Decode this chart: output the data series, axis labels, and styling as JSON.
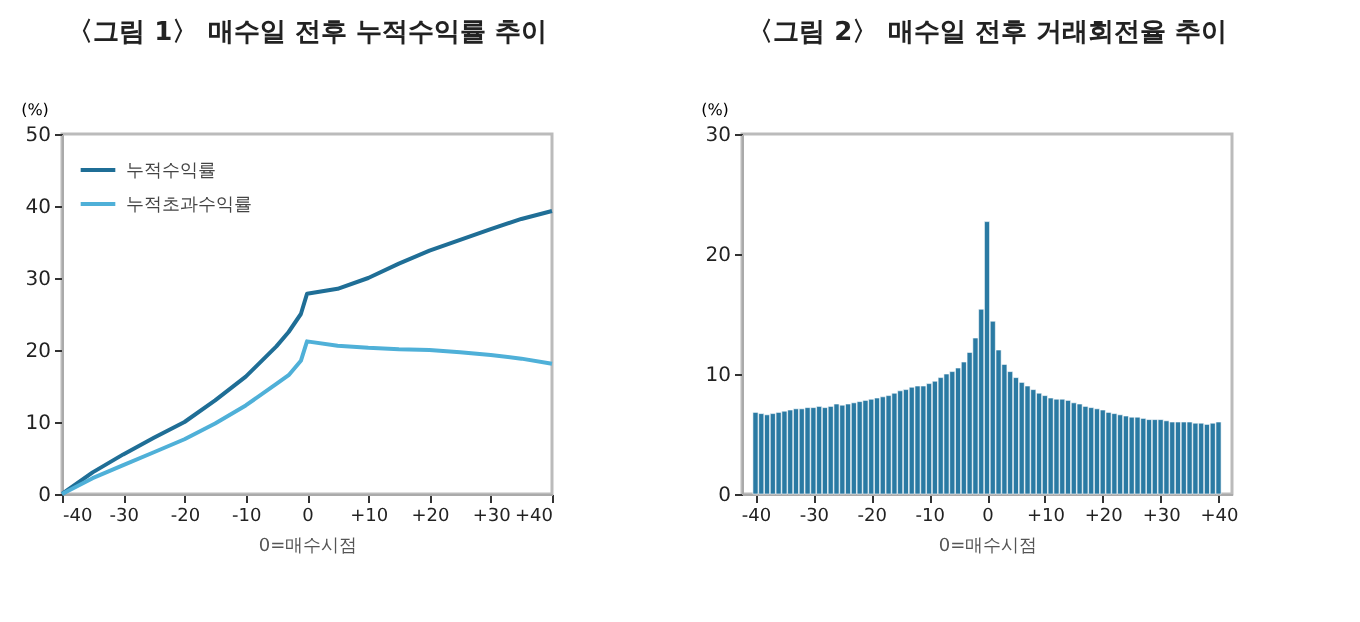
{
  "chart_data": [
    {
      "type": "line",
      "title": "〈그림 1〉 매수일 전후 누적수익률 추이",
      "xlabel": "0=매수시점",
      "ylabel": "(%)",
      "legend": "top left",
      "grid": false,
      "xlim": [
        -40,
        40
      ],
      "xticks": [
        -40,
        -30,
        -20,
        -10,
        0,
        {
          "value": 10,
          "label": "+10"
        },
        {
          "value": 20,
          "label": "+20"
        },
        {
          "value": 30,
          "label": "+30"
        },
        {
          "value": 40,
          "label": "+40"
        }
      ],
      "ylim": [
        0,
        50
      ],
      "yticks": [
        0,
        10,
        20,
        30,
        40,
        50
      ],
      "x": [
        -40,
        -35,
        -30,
        -25,
        -20,
        -15,
        -10,
        -5,
        -3,
        -1,
        0,
        5,
        10,
        15,
        20,
        25,
        30,
        35,
        40
      ],
      "series": [
        {
          "name": "누적수익률",
          "color": "#1f6e96",
          "values": [
            0,
            3,
            5.5,
            7.8,
            10,
            13,
            16.3,
            20.5,
            22.5,
            25,
            27.8,
            28.5,
            30,
            32,
            33.8,
            35.3,
            36.8,
            38.2,
            39.3
          ]
        },
        {
          "name": "누적초과수익률",
          "color": "#4fb0d8",
          "values": [
            0,
            2.2,
            4,
            5.8,
            7.6,
            9.8,
            12.3,
            15.3,
            16.5,
            18.5,
            21.2,
            20.6,
            20.3,
            20.1,
            20,
            19.7,
            19.3,
            18.8,
            18.1
          ]
        }
      ]
    },
    {
      "type": "bar",
      "title": "〈그림 2〉 매수일 전후 거래회전율 추이",
      "xlabel": "0=매수시점",
      "ylabel": "(%)",
      "grid": false,
      "xlim": [
        -40.6,
        40.6
      ],
      "xticks": [
        -40,
        -30,
        -20,
        -10,
        0,
        {
          "value": 10,
          "label": "+10"
        },
        {
          "value": 20,
          "label": "+20"
        },
        {
          "value": 30,
          "label": "+30"
        },
        {
          "value": 40,
          "label": "+40"
        }
      ],
      "ylim": [
        0,
        30
      ],
      "yticks": [
        0,
        10,
        20,
        30
      ],
      "x": [
        -40,
        -39,
        -38,
        -37,
        -36,
        -35,
        -34,
        -33,
        -32,
        -31,
        -30,
        -29,
        -28,
        -27,
        -26,
        -25,
        -24,
        -23,
        -22,
        -21,
        -20,
        -19,
        -18,
        -17,
        -16,
        -15,
        -14,
        -13,
        -12,
        -11,
        -10,
        -9,
        -8,
        -7,
        -6,
        -5,
        -4,
        -3,
        -2,
        -1,
        0,
        1,
        2,
        3,
        4,
        5,
        6,
        7,
        8,
        9,
        10,
        11,
        12,
        13,
        14,
        15,
        16,
        17,
        18,
        19,
        20,
        21,
        22,
        23,
        24,
        25,
        26,
        27,
        28,
        29,
        30,
        31,
        32,
        33,
        34,
        35,
        36,
        37,
        38,
        39,
        40
      ],
      "values": [
        6.8,
        6.7,
        6.6,
        6.7,
        6.8,
        6.9,
        7.0,
        7.1,
        7.1,
        7.2,
        7.2,
        7.3,
        7.2,
        7.3,
        7.5,
        7.4,
        7.5,
        7.6,
        7.7,
        7.8,
        7.9,
        8.0,
        8.1,
        8.2,
        8.4,
        8.6,
        8.7,
        8.9,
        9.0,
        9.0,
        9.2,
        9.4,
        9.7,
        10.0,
        10.2,
        10.5,
        11.0,
        11.8,
        13.0,
        15.4,
        22.7,
        14.4,
        12.0,
        10.8,
        10.2,
        9.7,
        9.3,
        9.0,
        8.7,
        8.4,
        8.2,
        8.0,
        7.9,
        7.9,
        7.8,
        7.6,
        7.5,
        7.3,
        7.2,
        7.1,
        7.0,
        6.8,
        6.7,
        6.6,
        6.5,
        6.4,
        6.4,
        6.3,
        6.2,
        6.2,
        6.2,
        6.1,
        6.0,
        6.0,
        6.0,
        6.0,
        5.9,
        5.9,
        5.8,
        5.9,
        6.0
      ],
      "color": "#2a7aa3"
    }
  ]
}
